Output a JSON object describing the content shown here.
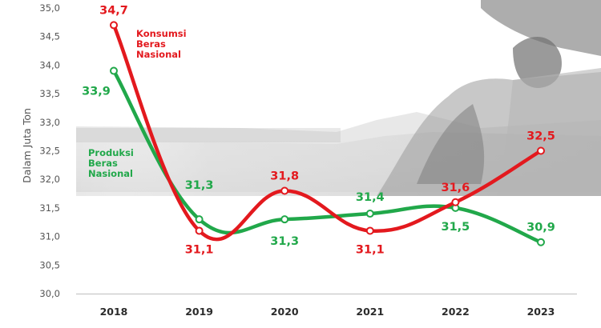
{
  "chart_data": {
    "type": "line",
    "categories": [
      "2018",
      "2019",
      "2020",
      "2021",
      "2022",
      "2023"
    ],
    "ylabel": "Dalam Juta Ton",
    "ylim": [
      30.0,
      35.0
    ],
    "yticks": [
      "30,0",
      "30,5",
      "31,0",
      "31,5",
      "32,0",
      "32,5",
      "33,0",
      "33,5",
      "34,0",
      "34,5",
      "35,0"
    ],
    "grid": false,
    "series": [
      {
        "name": "Konsumsi Beras Nasional",
        "name_lines": [
          "Konsumsi",
          "Beras",
          "Nasional"
        ],
        "color": "#e3191e",
        "values": [
          34.7,
          31.1,
          31.8,
          31.1,
          31.6,
          32.5
        ],
        "labels": [
          "34,7",
          "31,1",
          "31,8",
          "31,1",
          "31,6",
          "32,5"
        ]
      },
      {
        "name": "Produksi Beras Nasional",
        "name_lines": [
          "Produksi",
          "Beras",
          "Nasional"
        ],
        "color": "#21a84a",
        "values": [
          33.9,
          31.3,
          31.3,
          31.4,
          31.5,
          30.9
        ],
        "labels": [
          "33,9",
          "31,3",
          "31,3",
          "31,4",
          "31,5",
          "30,9"
        ]
      }
    ]
  }
}
